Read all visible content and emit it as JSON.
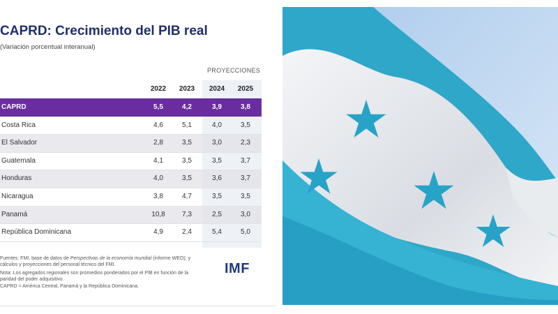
{
  "title": "CAPRD: Crecimiento del PIB real",
  "subtitle": "(Variación porcentual interanual)",
  "table": {
    "projection_label": "PROYECCIONES",
    "header": [
      "2022",
      "2023",
      "2024",
      "2025"
    ],
    "rows": [
      [
        "CAPRD",
        "5,5",
        "4,2",
        "3,9",
        "3,8"
      ],
      [
        "Costa Rica",
        "4,6",
        "5,1",
        "4,0",
        "3,5"
      ],
      [
        "El Salvador",
        "2,8",
        "3,5",
        "3,0",
        "2,3"
      ],
      [
        "Guatemala",
        "4,1",
        "3,5",
        "3,5",
        "3,7"
      ],
      [
        "Honduras",
        "4,0",
        "3,5",
        "3,6",
        "3,7"
      ],
      [
        "Nicaragua",
        "3,8",
        "4,7",
        "3,5",
        "3,5"
      ],
      [
        "Panamá",
        "10,8",
        "7,3",
        "2,5",
        "3,0"
      ],
      [
        "República Dominicana",
        "4,9",
        "2,4",
        "5,4",
        "5,0"
      ]
    ]
  },
  "notes": {
    "sources": [
      "Fuentes: FMI, base de datos de ",
      "Perspectivas de la economía mundial",
      " (informe WEO); y cálculos y proyecciones del personal técnico del FMI."
    ],
    "note": "Nota: Los agregados regionales son promedios ponderados por el PIB en función de la paridad del poder adquisitivo.",
    "abbreviation": "CAPRD = América Central, Panamá y la República Dominicana."
  },
  "logo": "IMF"
}
